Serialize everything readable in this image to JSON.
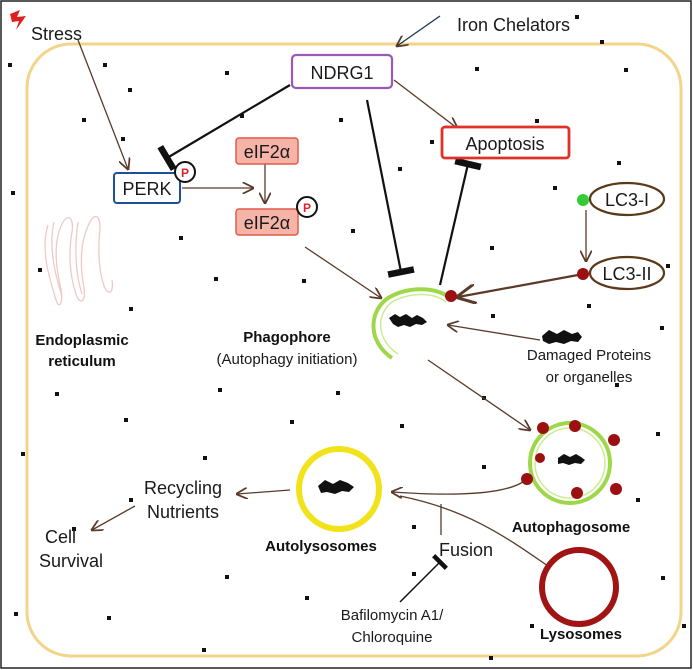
{
  "labels": {
    "stress": "Stress",
    "iron_chelators": "Iron Chelators",
    "ndrg1": "NDRG1",
    "apoptosis": "Apoptosis",
    "perk": "PERK",
    "eif2a_top": "eIF2α",
    "eif2a_bottom": "eIF2α",
    "phospho": "P",
    "lc3_i": "LC3-I",
    "lc3_ii": "LC3-II",
    "er_line1": "Endoplasmic",
    "er_line2": "reticulum",
    "phagophore": "Phagophore",
    "phagophore_sub": "(Autophagy initiation)",
    "damaged_line1": "Damaged Proteins",
    "damaged_line2": "or organelles",
    "autophagosome": "Autophagosome",
    "autolysosomes": "Autolysosomes",
    "lysosomes": "Lysosomes",
    "fusion": "Fusion",
    "recycling_line1": "Recycling",
    "recycling_line2": "Nutrients",
    "cell_line1": "Cell",
    "cell_line2": "Survival",
    "bafilomycin_line1": "Bafilomycin A1/",
    "bafilomycin_line2": "Chloroquine"
  },
  "colors": {
    "cell_border": "#f2d48a",
    "ndrg1_border": "#9b59b6",
    "apoptosis_border": "#e0302a",
    "perk_border": "#1f4e9a",
    "eif2a_fill": "#f6b3a8",
    "eif2a_border": "#e05a4a",
    "lc3_border": "#5a3a1a",
    "lc3_i_dot": "#33cc33",
    "lc3_ii_dot": "#9b1010",
    "membrane_green": "#9ed84a",
    "autolysosome_ring": "#f2e21a",
    "lysosome_ring": "#a01414",
    "arrow": "#5a3a28",
    "inhibit": "#111111",
    "lightning": "#e02020"
  }
}
